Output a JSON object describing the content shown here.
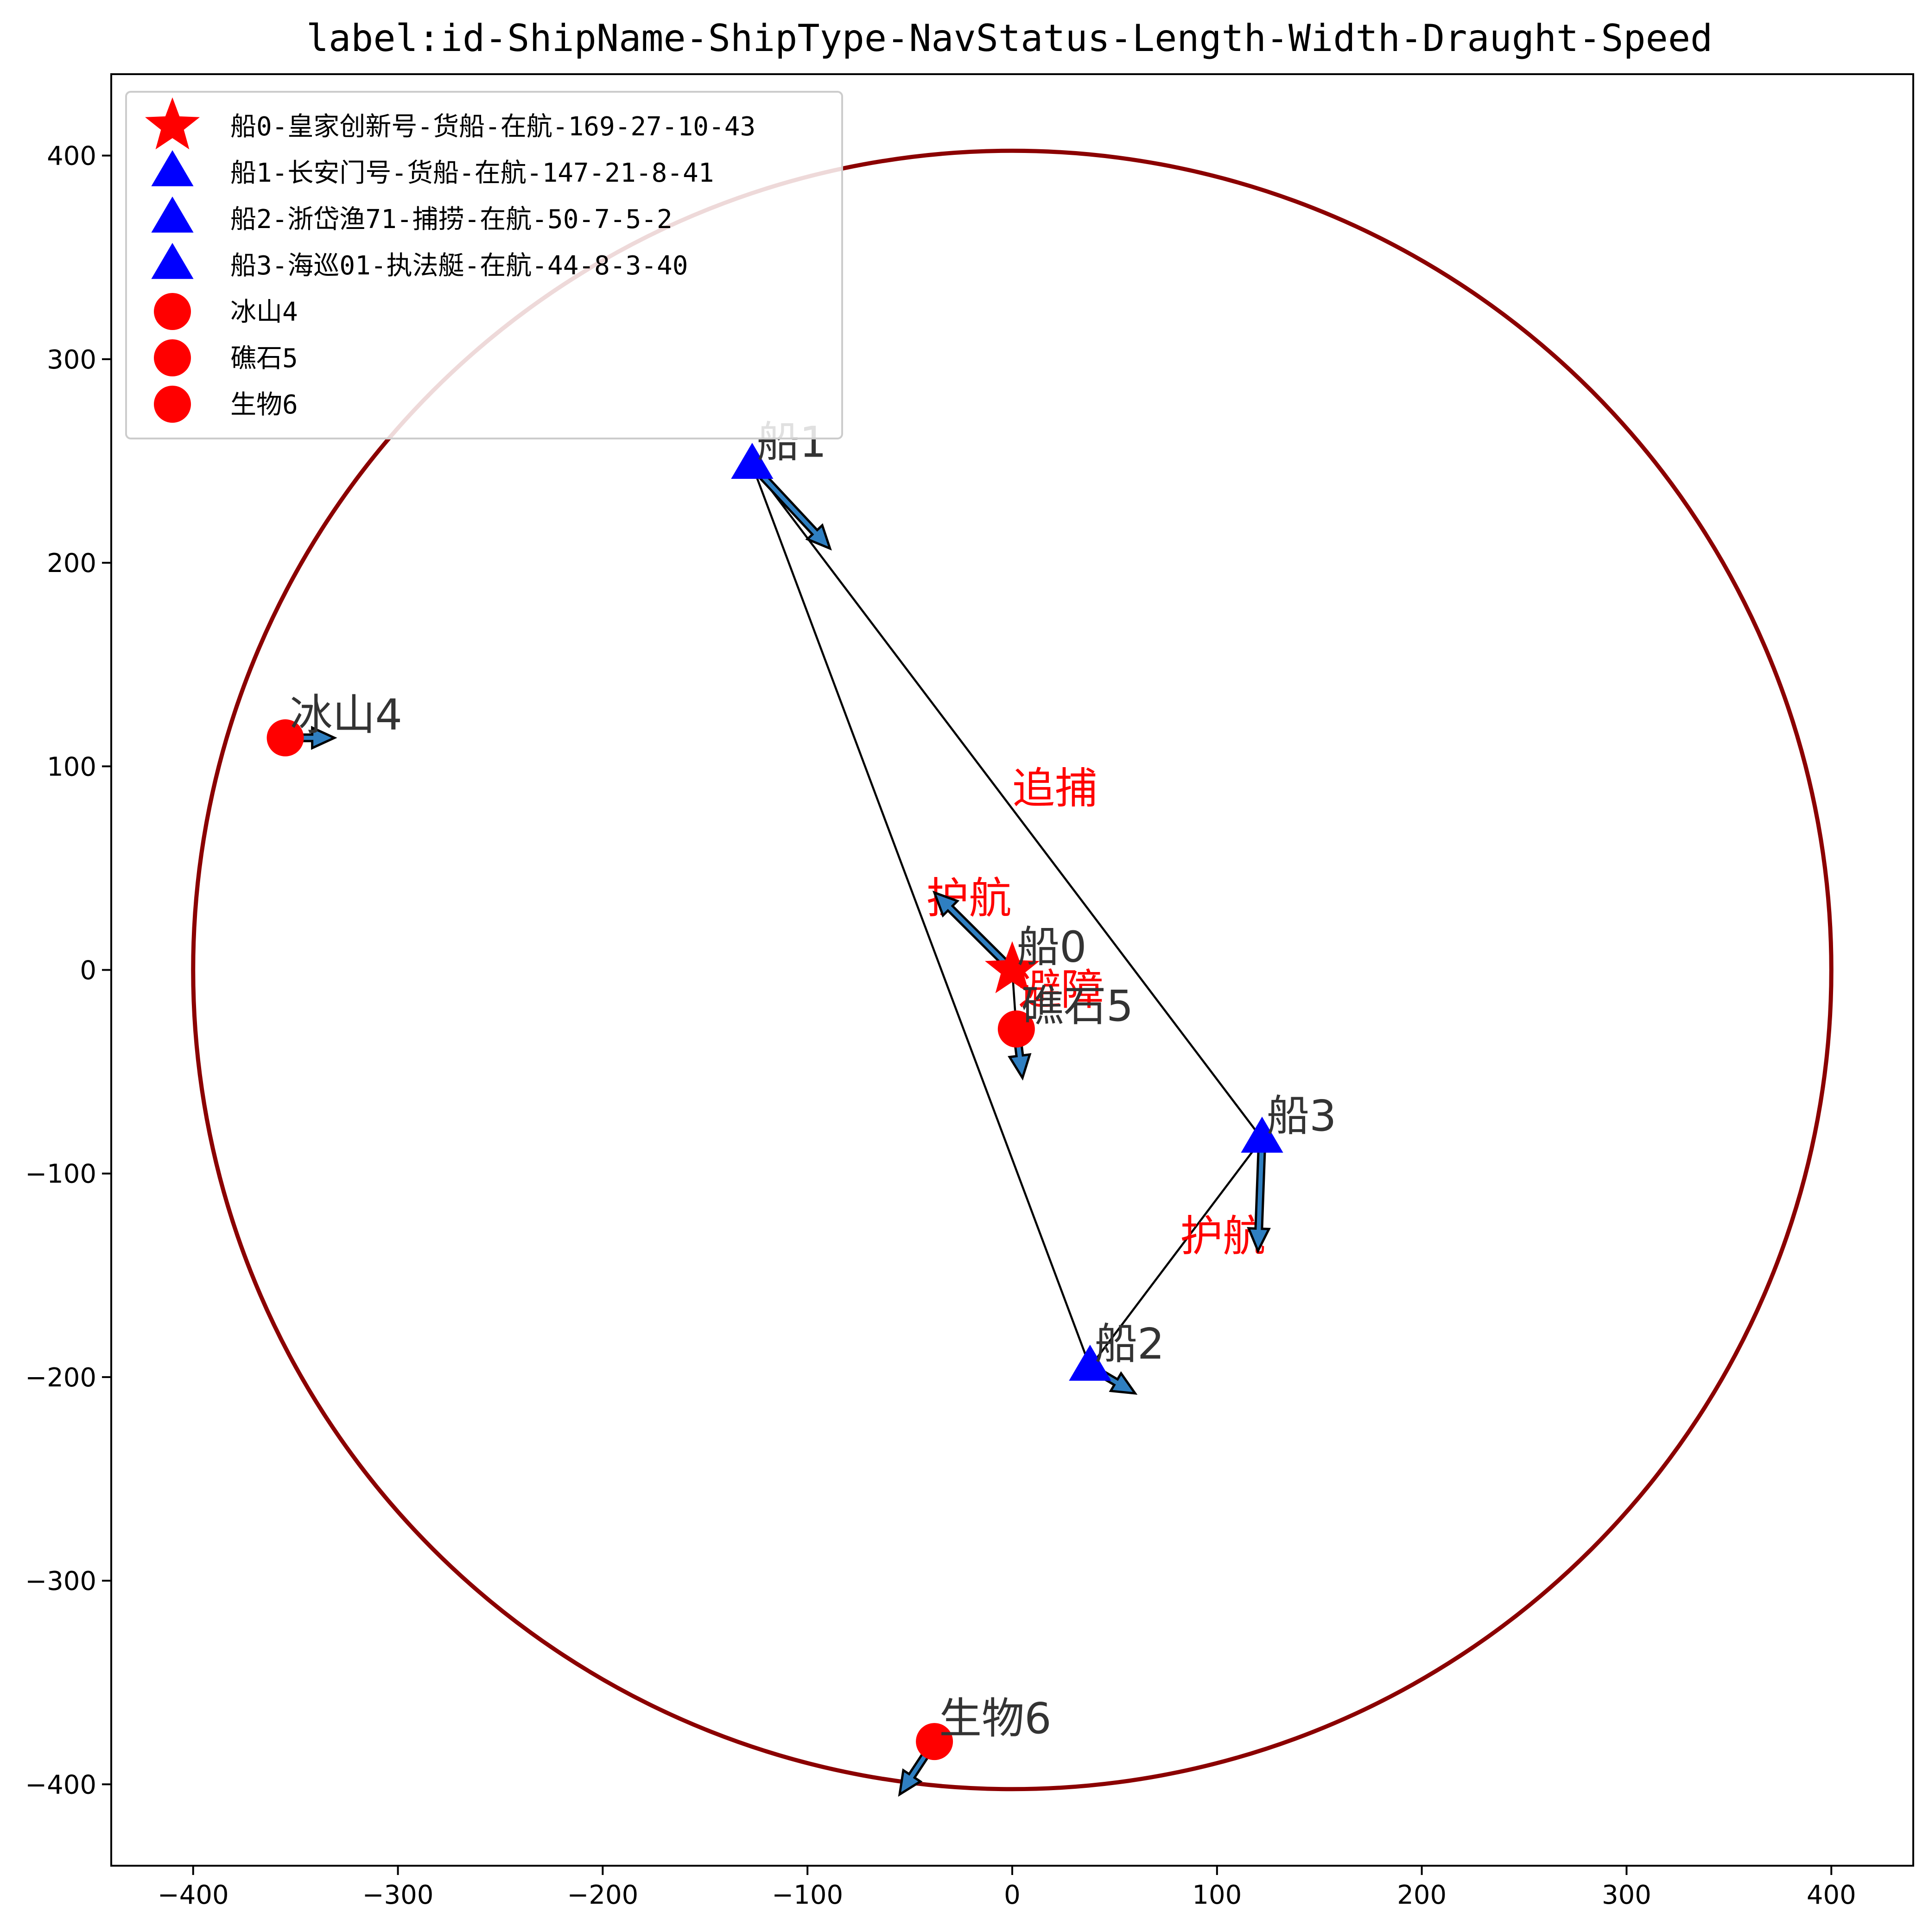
{
  "chart_data": {
    "type": "scatter",
    "title": "label:id-ShipName-ShipType-NavStatus-Length-Width-Draught-Speed",
    "xlim": [
      -440,
      440
    ],
    "ylim": [
      -440,
      440
    ],
    "xticks": [
      -400,
      -300,
      -200,
      -100,
      0,
      100,
      200,
      300,
      400
    ],
    "yticks": [
      -400,
      -300,
      -200,
      -100,
      0,
      100,
      200,
      300,
      400
    ],
    "xtick_labels": [
      "−400",
      "−300",
      "−200",
      "−100",
      "0",
      "100",
      "200",
      "300",
      "400"
    ],
    "ytick_labels": [
      "−400",
      "−300",
      "−200",
      "−100",
      "0",
      "100",
      "200",
      "300",
      "400"
    ],
    "grid": false,
    "legend_position": "top-left",
    "circle": {
      "center": [
        0,
        0
      ],
      "radius": 400,
      "color": "#8b0000"
    },
    "objects": [
      {
        "id": "ship0",
        "label": "船0",
        "legend": "船0-皇家创新号-货船-在航-169-27-10-43",
        "marker": "star",
        "color": "#ff0000",
        "x": 0,
        "y": 0,
        "vector": [
          -38,
          38
        ]
      },
      {
        "id": "ship1",
        "label": "船1",
        "legend": "船1-长安门号-货船-在航-147-21-8-41",
        "marker": "triangle",
        "color": "#0000ff",
        "x": -127,
        "y": 248,
        "vector": [
          38,
          -41
        ]
      },
      {
        "id": "ship2",
        "label": "船2",
        "legend": "船2-浙岱渔71-捕捞-在航-50-7-5-2",
        "marker": "triangle",
        "color": "#0000ff",
        "x": 38,
        "y": -195,
        "vector": [
          22,
          -13
        ]
      },
      {
        "id": "ship3",
        "label": "船3",
        "legend": "船3-海巡01-执法艇-在航-44-8-3-40",
        "marker": "triangle",
        "color": "#0000ff",
        "x": 122,
        "y": -83,
        "vector": [
          -2,
          -55
        ]
      },
      {
        "id": "obs4",
        "label": "冰山4",
        "legend": "冰山4",
        "marker": "circle",
        "color": "#ff0000",
        "x": -355,
        "y": 114,
        "vector": [
          24,
          0
        ]
      },
      {
        "id": "obs5",
        "label": "礁石5",
        "legend": "礁石5",
        "marker": "circle",
        "color": "#ff0000",
        "x": 2,
        "y": -29,
        "vector": [
          3,
          -24
        ]
      },
      {
        "id": "obs6",
        "label": "生物6",
        "legend": "生物6",
        "marker": "circle",
        "color": "#ff0000",
        "x": -38,
        "y": -379,
        "vector": [
          -17,
          -26
        ]
      }
    ],
    "relations": [
      {
        "from": [
          -127,
          248
        ],
        "to": [
          122,
          -83
        ],
        "label": "追捕",
        "label_pos": [
          0,
          82
        ]
      },
      {
        "from": [
          -127,
          248
        ],
        "to": [
          38,
          -195
        ],
        "label": "",
        "label_pos": null
      },
      {
        "from": [
          38,
          -195
        ],
        "to": [
          122,
          -83
        ],
        "label": "护航",
        "label_pos": [
          82,
          -138
        ]
      },
      {
        "from": [
          0,
          0
        ],
        "to": [
          -38,
          38
        ],
        "label": "护航",
        "label_pos": [
          -42,
          28
        ]
      },
      {
        "from": [
          0,
          0
        ],
        "to": [
          2,
          -29
        ],
        "label": "避障",
        "label_pos": [
          3,
          -17
        ]
      }
    ]
  }
}
